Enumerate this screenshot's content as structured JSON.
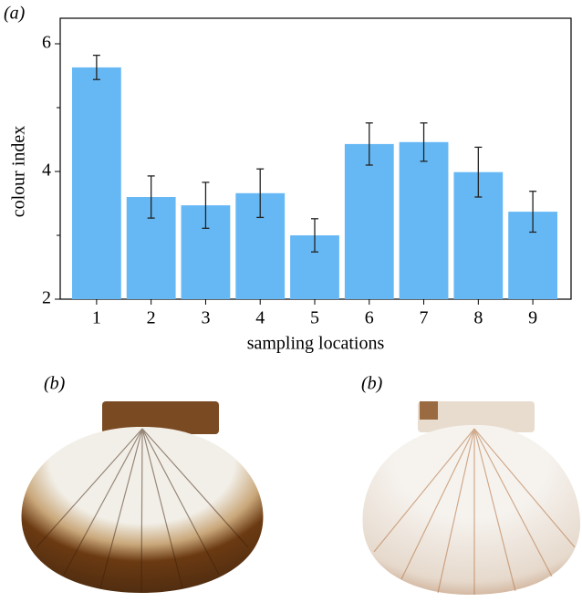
{
  "chart_data": {
    "type": "bar",
    "panel_label": "(a)",
    "xlabel": "sampling locations",
    "ylabel": "colour index",
    "categories": [
      "1",
      "2",
      "3",
      "4",
      "5",
      "6",
      "7",
      "8",
      "9"
    ],
    "values": [
      5.63,
      3.6,
      3.47,
      3.66,
      3.0,
      4.43,
      4.46,
      3.99,
      3.37
    ],
    "errors": [
      0.19,
      0.33,
      0.36,
      0.38,
      0.26,
      0.33,
      0.3,
      0.39,
      0.32
    ],
    "color": "#66b8f5",
    "ylim": [
      2,
      6.4
    ],
    "yticks": [
      2,
      4,
      6
    ],
    "yminorticks": [
      3,
      5
    ]
  },
  "photos": [
    {
      "label": "(b)"
    },
    {
      "label": "(b)"
    }
  ]
}
